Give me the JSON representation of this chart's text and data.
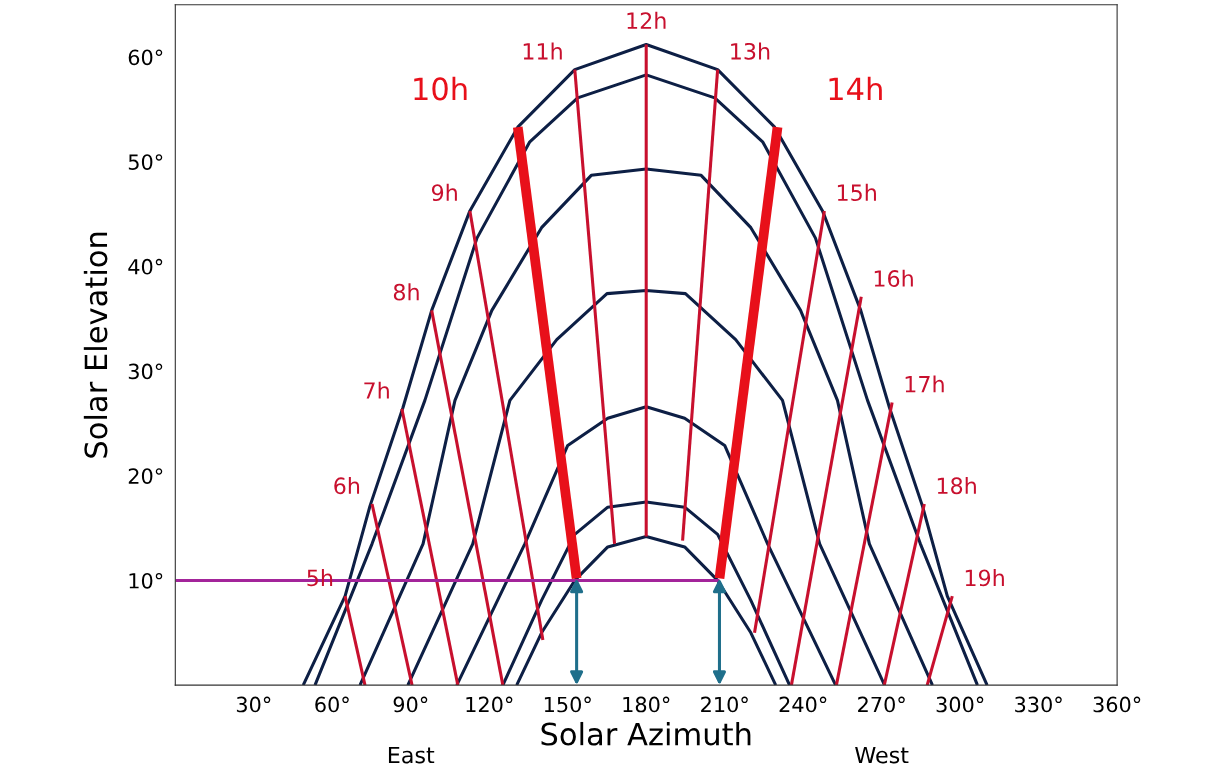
{
  "chart_data": {
    "type": "line",
    "xlabel": "Solar Azimuth",
    "ylabel": "Solar Elevation",
    "xlim": [
      0,
      360
    ],
    "ylim": [
      0,
      65
    ],
    "xticks": [
      {
        "value": 30,
        "label": "30°"
      },
      {
        "value": 60,
        "label": "60°"
      },
      {
        "value": 90,
        "label": "90°"
      },
      {
        "value": 120,
        "label": "120°"
      },
      {
        "value": 150,
        "label": "150°"
      },
      {
        "value": 180,
        "label": "180°"
      },
      {
        "value": 210,
        "label": "210°"
      },
      {
        "value": 240,
        "label": "240°"
      },
      {
        "value": 270,
        "label": "270°"
      },
      {
        "value": 300,
        "label": "300°"
      },
      {
        "value": 330,
        "label": "330°"
      },
      {
        "value": 360,
        "label": "360°"
      }
    ],
    "yticks": [
      {
        "value": 10,
        "label": "10°"
      },
      {
        "value": 20,
        "label": "20°"
      },
      {
        "value": 30,
        "label": "30°"
      },
      {
        "value": 40,
        "label": "40°"
      },
      {
        "value": 50,
        "label": "50°"
      },
      {
        "value": 60,
        "label": "60°"
      }
    ],
    "grid": false,
    "legend": false,
    "marker": "none",
    "line_style": "solid",
    "annotations": [
      "East",
      "West"
    ],
    "series": [
      {
        "color": "#0d1f45",
        "x": [
          48.9,
          64.9,
          74.4,
          87,
          98,
          112.6,
          130.9,
          152.7,
          180,
          207.3,
          229.1,
          247.4,
          262,
          273,
          285.6,
          295.1,
          310.3
        ],
        "values": [
          0,
          8.5,
          17.1,
          26.5,
          35.8,
          45.3,
          53.3,
          58.8,
          61.2,
          58.8,
          53.3,
          45.3,
          35.8,
          26.5,
          17.1,
          8.5,
          0
        ]
      },
      {
        "color": "#0d1f45",
        "x": [
          53.4,
          75.2,
          95.4,
          115.3,
          135.5,
          153.8,
          180,
          206.2,
          224.5,
          244.7,
          264.6,
          284.8,
          306.6
        ],
        "values": [
          0,
          13.5,
          27.2,
          42.7,
          51.9,
          56.1,
          58.3,
          56.1,
          51.9,
          42.7,
          27.2,
          13.5,
          0
        ]
      },
      {
        "color": "#0d1f45",
        "x": [
          70.6,
          94.7,
          106.9,
          121,
          140,
          159,
          180,
          201,
          220,
          239,
          253.1,
          265.3,
          289.4
        ],
        "values": [
          0,
          13.5,
          27.2,
          35.8,
          43.7,
          48.7,
          49.3,
          48.7,
          43.7,
          35.8,
          27.2,
          13.5,
          0
        ]
      },
      {
        "color": "#0d1f45",
        "x": [
          88.9,
          113.7,
          127.9,
          145.8,
          165,
          180,
          195,
          214.2,
          232.1,
          246.3,
          271.1
        ],
        "values": [
          0,
          13.5,
          27.2,
          33,
          37.4,
          37.7,
          37.4,
          33,
          27.2,
          13.5,
          0
        ]
      },
      {
        "color": "#0d1f45",
        "x": [
          107.6,
          133.6,
          150,
          165.3,
          180,
          194.7,
          210,
          226.4,
          252.4
        ],
        "values": [
          0,
          13.5,
          22.9,
          25.5,
          26.6,
          25.5,
          22.9,
          13.5,
          0
        ]
      },
      {
        "color": "#0d1f45",
        "x": [
          125.2,
          140,
          152.7,
          165.3,
          180,
          194.7,
          207.3,
          220,
          234.8
        ],
        "values": [
          0,
          8.1,
          14.4,
          17,
          17.5,
          17,
          14.4,
          8.1,
          0
        ]
      },
      {
        "color": "#0d1f45",
        "x": [
          130.5,
          140,
          152.7,
          165.3,
          180,
          194.7,
          207.3,
          220,
          229.5
        ],
        "values": [
          0,
          5,
          10,
          13.2,
          14.2,
          13.2,
          10,
          5,
          0
        ]
      },
      {
        "name": "5h",
        "color": "#c8102e",
        "x": [
          72.5,
          64.9
        ],
        "values": [
          0,
          8.5
        ]
      },
      {
        "name": "6h",
        "color": "#c8102e",
        "x": [
          90.5,
          75.2
        ],
        "values": [
          0,
          17.3
        ]
      },
      {
        "name": "7h",
        "color": "#c8102e",
        "x": [
          108,
          86.6
        ],
        "values": [
          0,
          26.4
        ]
      },
      {
        "name": "8h",
        "color": "#c8102e",
        "x": [
          125.2,
          98
        ],
        "values": [
          0,
          35.8
        ]
      },
      {
        "name": "9h",
        "color": "#c8102e",
        "x": [
          140.5,
          112.6
        ],
        "values": [
          4.3,
          45.3
        ]
      },
      {
        "name": "10h",
        "color": "#e8101a",
        "x": [
          153.4,
          130.9
        ],
        "values": [
          10.2,
          53.3
        ]
      },
      {
        "name": "11h",
        "color": "#c8102e",
        "x": [
          167.9,
          152.7
        ],
        "values": [
          13.5,
          58.8
        ]
      },
      {
        "name": "12h",
        "color": "#c8102e",
        "x": [
          180,
          180
        ],
        "values": [
          14.2,
          61.2
        ]
      },
      {
        "name": "13h",
        "color": "#c8102e",
        "x": [
          193.9,
          207.3
        ],
        "values": [
          13.8,
          58.8
        ]
      },
      {
        "name": "14h",
        "color": "#e8101a",
        "x": [
          208,
          230.2
        ],
        "values": [
          10.2,
          53.3
        ]
      },
      {
        "name": "15h",
        "color": "#c8102e",
        "x": [
          221.4,
          248.1
        ],
        "values": [
          5,
          45.3
        ]
      },
      {
        "name": "16h",
        "color": "#c8102e",
        "x": [
          235.5,
          262.2
        ],
        "values": [
          0,
          37.1
        ]
      },
      {
        "name": "17h",
        "color": "#c8102e",
        "x": [
          252.7,
          274
        ],
        "values": [
          0,
          27
        ]
      },
      {
        "name": "18h",
        "color": "#c8102e",
        "x": [
          271,
          286.3
        ],
        "values": [
          0,
          17.3
        ]
      },
      {
        "name": "19h",
        "color": "#c8102e",
        "x": [
          287.4,
          297
        ],
        "values": [
          0,
          8.5
        ]
      },
      {
        "color": "#a3249a",
        "x": [
          0,
          208
        ],
        "values": [
          10,
          10
        ]
      }
    ]
  }
}
